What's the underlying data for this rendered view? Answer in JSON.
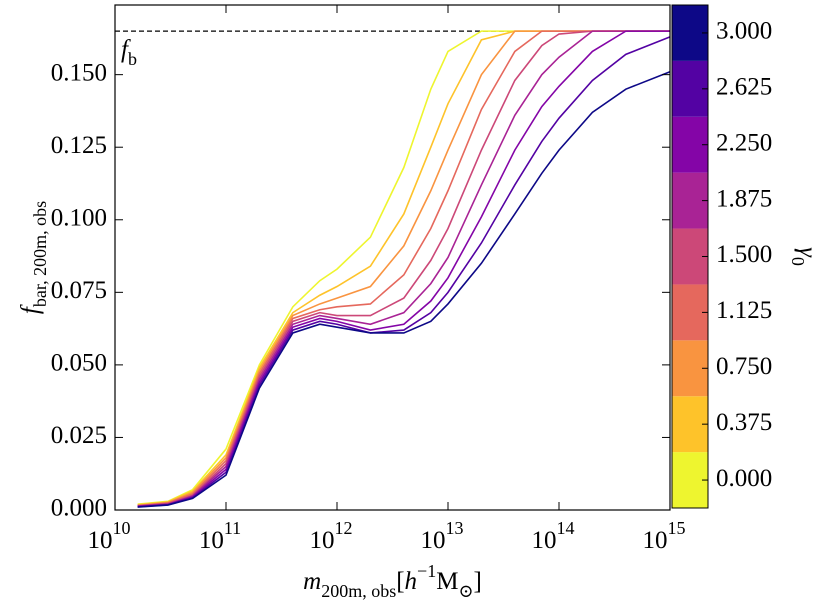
{
  "chart_data": {
    "type": "line",
    "xlog": true,
    "xlim": [
      10000000000,
      1000000000000000
    ],
    "xticks": [
      {
        "value": 10000000000,
        "label": "10",
        "exponent": "10"
      },
      {
        "value": 100000000000,
        "label": "10",
        "exponent": "11"
      },
      {
        "value": 1000000000000,
        "label": "10",
        "exponent": "12"
      },
      {
        "value": 10000000000000,
        "label": "10",
        "exponent": "13"
      },
      {
        "value": 100000000000000,
        "label": "10",
        "exponent": "14"
      },
      {
        "value": 1000000000000000,
        "label": "10",
        "exponent": "15"
      }
    ],
    "ylim": [
      0,
      0.174
    ],
    "yticks": [
      {
        "value": 0,
        "label": "0.000"
      },
      {
        "value": 0.025,
        "label": "0.025"
      },
      {
        "value": 0.05,
        "label": "0.050"
      },
      {
        "value": 0.075,
        "label": "0.075"
      },
      {
        "value": 0.1,
        "label": "0.100"
      },
      {
        "value": 0.125,
        "label": "0.125"
      },
      {
        "value": 0.15,
        "label": "0.150"
      }
    ],
    "xlabel": [
      {
        "text": "m",
        "style": "italic"
      },
      {
        "text": "200m, obs",
        "style": "sub"
      },
      {
        "text": "[",
        "style": "normal"
      },
      {
        "text": "h",
        "style": "italic"
      },
      {
        "text": "−1",
        "style": "sup"
      },
      {
        "text": "M",
        "style": "normal"
      },
      {
        "text": "⊙",
        "style": "sub"
      },
      {
        "text": "]",
        "style": "normal"
      }
    ],
    "ylabel": [
      {
        "text": "f",
        "style": "italic"
      },
      {
        "text": "bar, 200m, obs",
        "style": "sub"
      }
    ],
    "reference_line": {
      "value": 0.165,
      "label": [
        {
          "text": "f",
          "style": "italic"
        },
        {
          "text": "b",
          "style": "sub"
        }
      ]
    },
    "x": [
      16000000000,
      30000000000,
      50000000000,
      100000000000,
      200000000000,
      400000000000,
      700000000000,
      1000000000000,
      2000000000000,
      4000000000000,
      7000000000000,
      10000000000000,
      20000000000000,
      40000000000000,
      70000000000000,
      100000000000000,
      200000000000000,
      400000000000000,
      1000000000000000
    ],
    "series": [
      {
        "color": "#eef52f",
        "values": [
          0.002,
          0.003,
          0.007,
          0.021,
          0.05,
          0.07,
          0.079,
          0.083,
          0.094,
          0.118,
          0.145,
          0.158,
          0.165,
          0.165,
          0.165,
          0.165,
          0.165,
          0.165,
          0.165
        ]
      },
      {
        "color": "#fec32a",
        "values": [
          0.0018,
          0.0028,
          0.0065,
          0.019,
          0.049,
          0.068,
          0.074,
          0.077,
          0.084,
          0.102,
          0.125,
          0.14,
          0.162,
          0.165,
          0.165,
          0.165,
          0.165,
          0.165,
          0.165
        ]
      },
      {
        "color": "#f99440",
        "values": [
          0.0016,
          0.0026,
          0.006,
          0.018,
          0.048,
          0.067,
          0.071,
          0.073,
          0.077,
          0.091,
          0.11,
          0.124,
          0.15,
          0.165,
          0.165,
          0.165,
          0.165,
          0.165,
          0.165
        ]
      },
      {
        "color": "#e5685d",
        "values": [
          0.0015,
          0.0024,
          0.0055,
          0.017,
          0.047,
          0.066,
          0.069,
          0.07,
          0.071,
          0.081,
          0.097,
          0.11,
          0.138,
          0.158,
          0.165,
          0.165,
          0.165,
          0.165,
          0.165
        ]
      },
      {
        "color": "#cc4878",
        "values": [
          0.0014,
          0.0022,
          0.005,
          0.016,
          0.046,
          0.065,
          0.068,
          0.067,
          0.067,
          0.073,
          0.086,
          0.097,
          0.124,
          0.148,
          0.16,
          0.164,
          0.165,
          0.165,
          0.165
        ]
      },
      {
        "color": "#a92395",
        "values": [
          0.0013,
          0.002,
          0.0048,
          0.015,
          0.045,
          0.064,
          0.067,
          0.066,
          0.064,
          0.068,
          0.078,
          0.087,
          0.112,
          0.136,
          0.15,
          0.156,
          0.165,
          0.165,
          0.165
        ]
      },
      {
        "color": "#8405a7",
        "values": [
          0.0012,
          0.0019,
          0.0045,
          0.014,
          0.044,
          0.063,
          0.066,
          0.065,
          0.062,
          0.064,
          0.072,
          0.08,
          0.101,
          0.124,
          0.139,
          0.146,
          0.158,
          0.165,
          0.165
        ]
      },
      {
        "color": "#5302a3",
        "values": [
          0.0011,
          0.0018,
          0.0042,
          0.013,
          0.043,
          0.062,
          0.065,
          0.064,
          0.061,
          0.062,
          0.068,
          0.075,
          0.092,
          0.112,
          0.127,
          0.135,
          0.148,
          0.157,
          0.163
        ]
      },
      {
        "color": "#0d0887",
        "values": [
          0.001,
          0.0017,
          0.004,
          0.012,
          0.042,
          0.061,
          0.064,
          0.063,
          0.061,
          0.061,
          0.065,
          0.071,
          0.085,
          0.102,
          0.116,
          0.124,
          0.137,
          0.145,
          0.151
        ]
      }
    ],
    "colorbar": {
      "label": [
        {
          "text": "γ",
          "style": "italic"
        },
        {
          "text": "0",
          "style": "sub"
        }
      ],
      "lim": [
        -0.1875,
        3.1875
      ],
      "ticks": [
        {
          "value": 0,
          "label": "0.000"
        },
        {
          "value": 0.375,
          "label": "0.375"
        },
        {
          "value": 0.75,
          "label": "0.750"
        },
        {
          "value": 1.125,
          "label": "1.125"
        },
        {
          "value": 1.5,
          "label": "1.500"
        },
        {
          "value": 1.875,
          "label": "1.875"
        },
        {
          "value": 2.25,
          "label": "2.250"
        },
        {
          "value": 2.625,
          "label": "2.625"
        },
        {
          "value": 3,
          "label": "3.000"
        }
      ]
    }
  }
}
